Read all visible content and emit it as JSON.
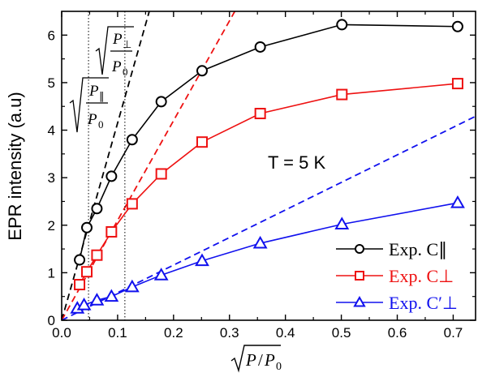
{
  "chart_data": {
    "type": "scatter",
    "xlabel": "√P/P0",
    "ylabel": "EPR intensity (a.u)",
    "xlim": [
      0,
      0.74
    ],
    "ylim": [
      0,
      6.5
    ],
    "x_ticks": [
      "0.0",
      "0.1",
      "0.2",
      "0.3",
      "0.4",
      "0.5",
      "0.6",
      "0.7"
    ],
    "y_ticks": [
      "0",
      "1",
      "2",
      "3",
      "4",
      "5",
      "6"
    ],
    "grid": false,
    "legend_position": "bottom-right",
    "annotation": "T = 5 K",
    "vlines": [
      {
        "x": 0.048,
        "label": "√P∥/P0"
      },
      {
        "x": 0.113,
        "label": "√P⊥/P0"
      }
    ],
    "series": [
      {
        "name": "Exp. C∥",
        "color": "#000000",
        "marker": "circle",
        "x": [
          0.032,
          0.045,
          0.063,
          0.089,
          0.126,
          0.178,
          0.251,
          0.355,
          0.501,
          0.708
        ],
        "y": [
          1.27,
          1.95,
          2.35,
          3.03,
          3.8,
          4.6,
          5.25,
          5.75,
          6.22,
          6.18
        ]
      },
      {
        "name": "Exp. C⊥",
        "color": "#ee1111",
        "marker": "square",
        "x": [
          0.032,
          0.045,
          0.063,
          0.089,
          0.126,
          0.178,
          0.251,
          0.355,
          0.501,
          0.708
        ],
        "y": [
          0.75,
          1.02,
          1.37,
          1.86,
          2.45,
          3.08,
          3.75,
          4.35,
          4.75,
          4.98
        ]
      },
      {
        "name": "Exp. C′⊥",
        "color": "#1111ee",
        "marker": "triangle",
        "x": [
          0.028,
          0.04,
          0.063,
          0.089,
          0.126,
          0.178,
          0.251,
          0.355,
          0.501,
          0.708
        ],
        "y": [
          0.25,
          0.32,
          0.42,
          0.5,
          0.7,
          0.95,
          1.25,
          1.62,
          2.02,
          2.47
        ]
      }
    ],
    "fit_lines": [
      {
        "color": "#000000",
        "slope": 41.5
      },
      {
        "color": "#ee1111",
        "slope": 21.0
      },
      {
        "color": "#1111ee",
        "slope": 5.8
      }
    ]
  }
}
